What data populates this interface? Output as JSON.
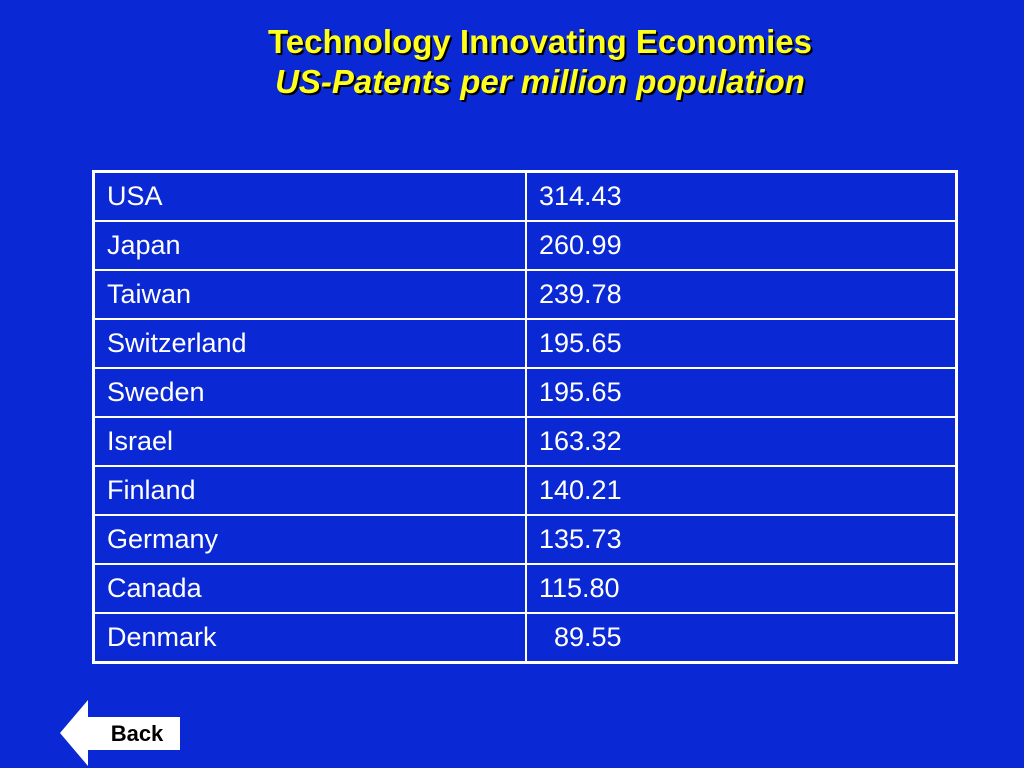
{
  "title": {
    "line1": "Technology Innovating Economies",
    "line2": "US-Patents per million population"
  },
  "table": {
    "rows": [
      {
        "country": "USA",
        "value": "314.43"
      },
      {
        "country": "Japan",
        "value": "260.99"
      },
      {
        "country": "Taiwan",
        "value": "239.78"
      },
      {
        "country": "Switzerland",
        "value": "195.65"
      },
      {
        "country": "Sweden",
        "value": "195.65"
      },
      {
        "country": "Israel",
        "value": "163.32"
      },
      {
        "country": "Finland",
        "value": "140.21"
      },
      {
        "country": "Germany",
        "value": "135.73"
      },
      {
        "country": "Canada",
        "value": "115.80"
      },
      {
        "country": "Denmark",
        "value": "  89.55"
      }
    ]
  },
  "nav": {
    "back_label": "Back"
  },
  "colors": {
    "background": "#0a28d4",
    "title": "#ffff1a",
    "table_text": "#ffffff",
    "button_bg": "#ffffff"
  }
}
